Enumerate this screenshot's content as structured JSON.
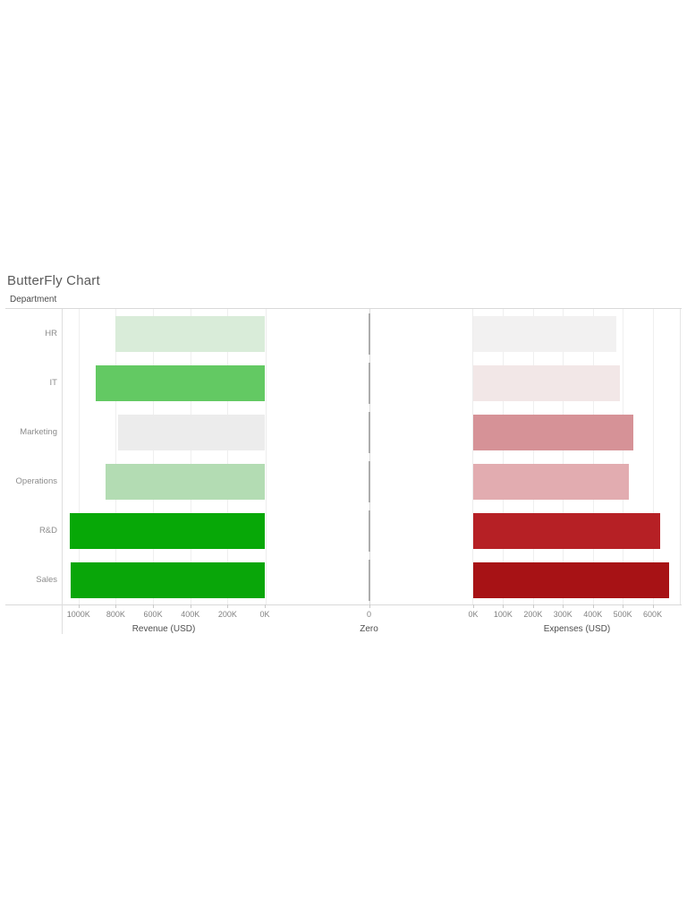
{
  "title": "ButterFly Chart",
  "row_header_label": "Department",
  "chart_data": {
    "type": "bar",
    "orientation": "horizontal-butterfly",
    "grid": true,
    "categories": [
      "HR",
      "IT",
      "Marketing",
      "Operations",
      "R&D",
      "Sales"
    ],
    "category_slugs": [
      "hr",
      "it",
      "marketing",
      "operations",
      "rd",
      "sales"
    ],
    "panes": [
      {
        "title": "Revenue (USD)",
        "side": "left",
        "axis_reversed": true,
        "xlim_k": [
          0,
          1095
        ],
        "ticks": [
          {
            "label": "1000K",
            "k": 1000
          },
          {
            "label": "800K",
            "k": 800
          },
          {
            "label": "600K",
            "k": 600
          },
          {
            "label": "400K",
            "k": 400
          },
          {
            "label": "200K",
            "k": 200
          },
          {
            "label": "0K",
            "k": 0
          }
        ],
        "values_k": [
          800,
          910,
          790,
          855,
          1045,
          1040
        ],
        "bar_colors": [
          "#d9ecd9",
          "#63c963",
          "#ececec",
          "#b3dcb3",
          "#07a807",
          "#09a609"
        ]
      },
      {
        "title": "Zero",
        "side": "middle",
        "ticks": [
          {
            "label": "0",
            "k": 0
          }
        ],
        "values_k": [
          0,
          0,
          0,
          0,
          0,
          0
        ]
      },
      {
        "title": "Expenses (USD)",
        "side": "right",
        "axis_reversed": false,
        "xlim_k": [
          0,
          700
        ],
        "ticks": [
          {
            "label": "0K",
            "k": 0
          },
          {
            "label": "100K",
            "k": 100
          },
          {
            "label": "200K",
            "k": 200
          },
          {
            "label": "300K",
            "k": 300
          },
          {
            "label": "400K",
            "k": 400
          },
          {
            "label": "500K",
            "k": 500
          },
          {
            "label": "600K",
            "k": 600
          }
        ],
        "values_k": [
          480,
          490,
          535,
          520,
          625,
          655
        ],
        "bar_colors": [
          "#f2f1f1",
          "#f2e7e7",
          "#d69297",
          "#e2acb0",
          "#b62025",
          "#a71215"
        ]
      }
    ]
  }
}
